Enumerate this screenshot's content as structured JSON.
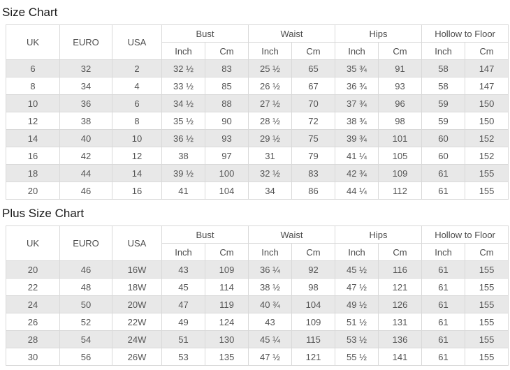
{
  "header": {
    "uk": "UK",
    "euro": "EURO",
    "usa": "USA",
    "bust": "Bust",
    "waist": "Waist",
    "hips": "Hips",
    "hollow_to_floor": "Hollow to Floor",
    "inch": "Inch",
    "cm": "Cm"
  },
  "colors": {
    "stripe_row": "#e8e8e8",
    "border": "#d9d9d9",
    "text": "#555555"
  },
  "size_chart": {
    "title": "Size Chart",
    "rows": [
      [
        "6",
        "32",
        "2",
        "32 ½",
        "83",
        "25 ½",
        "65",
        "35 ¾",
        "91",
        "58",
        "147"
      ],
      [
        "8",
        "34",
        "4",
        "33 ½",
        "85",
        "26 ½",
        "67",
        "36 ¾",
        "93",
        "58",
        "147"
      ],
      [
        "10",
        "36",
        "6",
        "34 ½",
        "88",
        "27 ½",
        "70",
        "37 ¾",
        "96",
        "59",
        "150"
      ],
      [
        "12",
        "38",
        "8",
        "35 ½",
        "90",
        "28 ½",
        "72",
        "38 ¾",
        "98",
        "59",
        "150"
      ],
      [
        "14",
        "40",
        "10",
        "36 ½",
        "93",
        "29 ½",
        "75",
        "39 ¾",
        "101",
        "60",
        "152"
      ],
      [
        "16",
        "42",
        "12",
        "38",
        "97",
        "31",
        "79",
        "41 ¼",
        "105",
        "60",
        "152"
      ],
      [
        "18",
        "44",
        "14",
        "39 ½",
        "100",
        "32 ½",
        "83",
        "42 ¾",
        "109",
        "61",
        "155"
      ],
      [
        "20",
        "46",
        "16",
        "41",
        "104",
        "34",
        "86",
        "44 ¼",
        "112",
        "61",
        "155"
      ]
    ]
  },
  "plus_size_chart": {
    "title": "Plus Size Chart",
    "rows": [
      [
        "20",
        "46",
        "16W",
        "43",
        "109",
        "36 ¼",
        "92",
        "45 ½",
        "116",
        "61",
        "155"
      ],
      [
        "22",
        "48",
        "18W",
        "45",
        "114",
        "38 ½",
        "98",
        "47 ½",
        "121",
        "61",
        "155"
      ],
      [
        "24",
        "50",
        "20W",
        "47",
        "119",
        "40 ¾",
        "104",
        "49 ½",
        "126",
        "61",
        "155"
      ],
      [
        "26",
        "52",
        "22W",
        "49",
        "124",
        "43",
        "109",
        "51 ½",
        "131",
        "61",
        "155"
      ],
      [
        "28",
        "54",
        "24W",
        "51",
        "130",
        "45 ¼",
        "115",
        "53 ½",
        "136",
        "61",
        "155"
      ],
      [
        "30",
        "56",
        "26W",
        "53",
        "135",
        "47 ½",
        "121",
        "55 ½",
        "141",
        "61",
        "155"
      ]
    ]
  }
}
